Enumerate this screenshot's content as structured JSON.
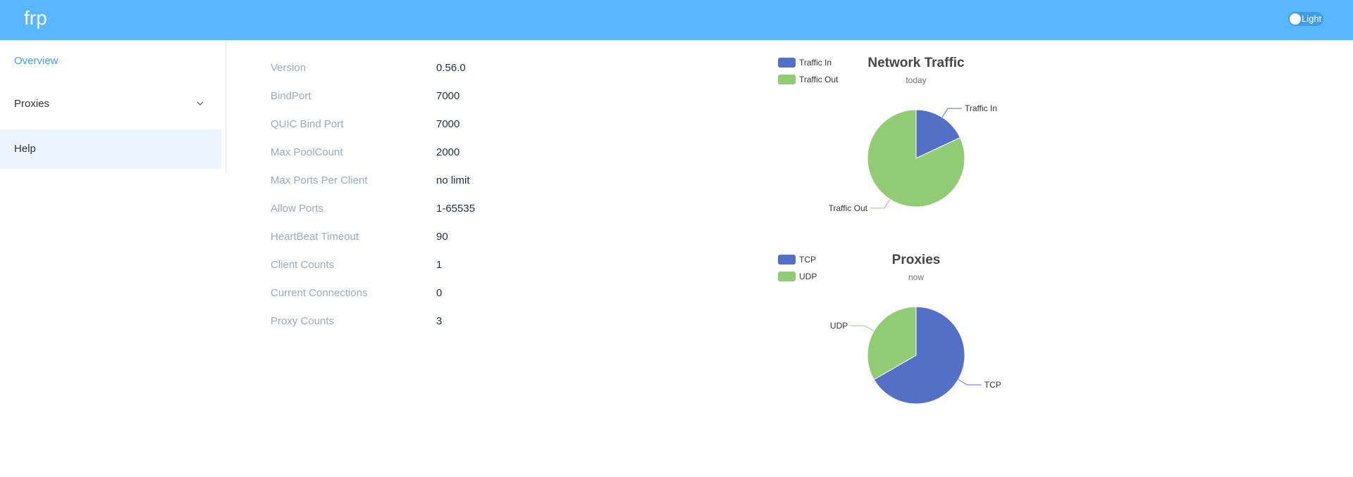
{
  "header": {
    "brand": "frp",
    "theme_toggle_label": "Light"
  },
  "sidebar": {
    "items": [
      {
        "label": "Overview"
      },
      {
        "label": "Proxies"
      },
      {
        "label": "Help"
      }
    ]
  },
  "server_info": [
    {
      "label": "Version",
      "value": "0.56.0"
    },
    {
      "label": "BindPort",
      "value": "7000"
    },
    {
      "label": "QUIC Bind Port",
      "value": "7000"
    },
    {
      "label": "Max PoolCount",
      "value": "2000"
    },
    {
      "label": "Max Ports Per Client",
      "value": "no limit"
    },
    {
      "label": "Allow Ports",
      "value": "1-65535"
    },
    {
      "label": "HeartBeat Timeout",
      "value": "90"
    },
    {
      "label": "Client Counts",
      "value": "1"
    },
    {
      "label": "Current Connections",
      "value": "0"
    },
    {
      "label": "Proxy Counts",
      "value": "3"
    }
  ],
  "colors": {
    "header": "#58b7ff",
    "series_blue": "#5470c6",
    "series_green": "#91cc75",
    "active_nav": "#409eff"
  },
  "icons": {
    "proxies_expand": "chevron-down-icon"
  },
  "chart_data": [
    {
      "type": "pie",
      "title": "Network Traffic",
      "subtitle": "today",
      "categories": [
        "Traffic In",
        "Traffic Out"
      ],
      "values": [
        18,
        82
      ],
      "legend": "top-left",
      "colors": [
        "#5470c6",
        "#91cc75"
      ]
    },
    {
      "type": "pie",
      "title": "Proxies",
      "subtitle": "now",
      "categories": [
        "TCP",
        "UDP"
      ],
      "values": [
        2,
        1
      ],
      "legend": "top-left",
      "colors": [
        "#5470c6",
        "#91cc75"
      ]
    }
  ]
}
